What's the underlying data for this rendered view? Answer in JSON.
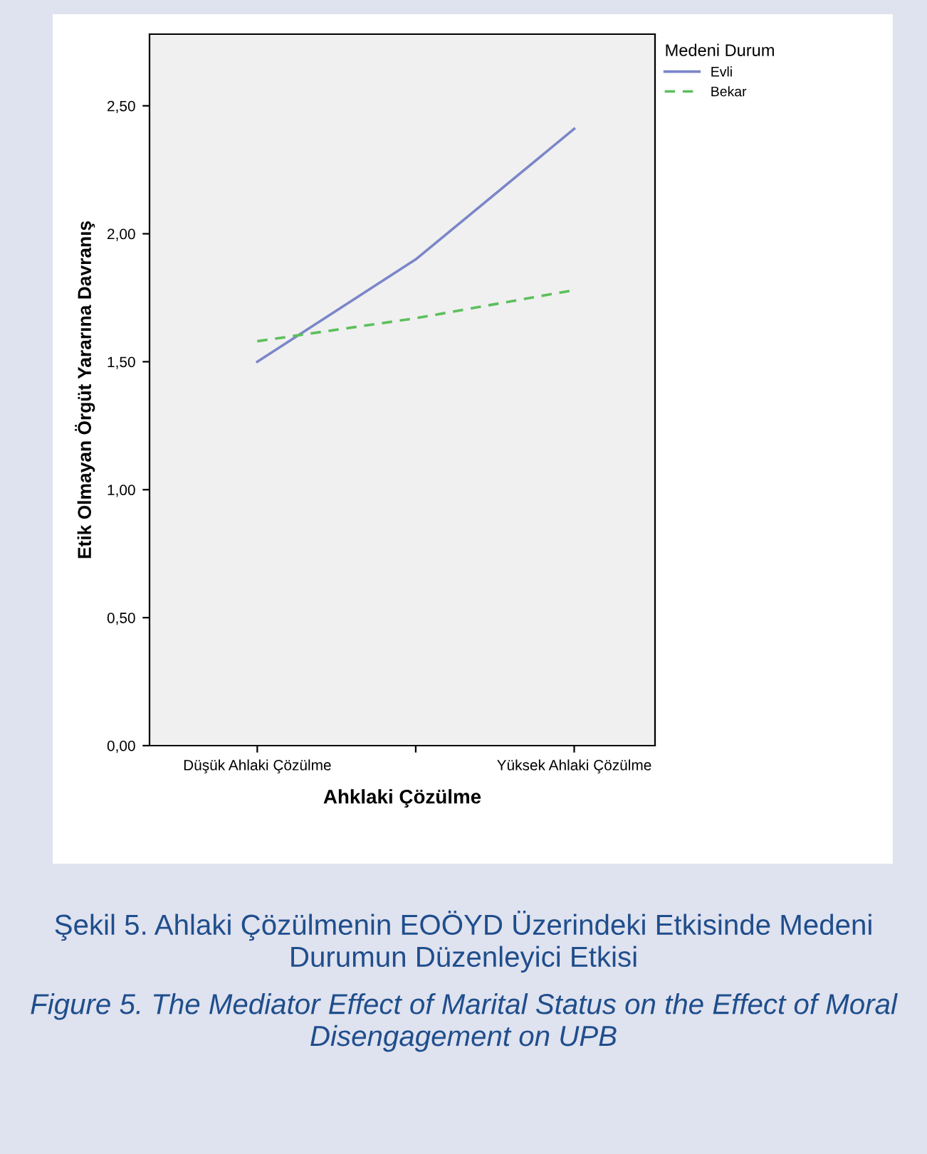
{
  "chart_data": {
    "type": "line",
    "xlabel": "Ahklaki Çözülme",
    "ylabel": "Etik Olmayan Örgüt Yararına Davranış",
    "legend_title": "Medeni Durum",
    "categories": [
      "Düşük Ahlaki Çözülme",
      null,
      "Yüksek Ahlaki Çözülme"
    ],
    "series": [
      {
        "name": "Evli",
        "color": "#7b86c9",
        "values": [
          1.5,
          1.9,
          2.41
        ],
        "line_style": "solid"
      },
      {
        "name": "Bekar",
        "color": "#5cbf5c",
        "values": [
          1.58,
          1.67,
          1.78
        ],
        "line_style": "dashed"
      }
    ],
    "ylim": [
      0,
      2.78
    ],
    "yticks": [
      {
        "value": 0,
        "label": "0,00"
      },
      {
        "value": 0.5,
        "label": "0,50"
      },
      {
        "value": 1,
        "label": "1,00"
      },
      {
        "value": 1.5,
        "label": "1,50"
      },
      {
        "value": 2,
        "label": "2,00"
      },
      {
        "value": 2.5,
        "label": "2,50"
      }
    ],
    "legend": "top right",
    "grid": false,
    "marker": "none",
    "annotations": [
      "Şekil 5. Ahlaki Çözülmenin EOÖYD Üzerindeki Etkisinde Medeni Durumun Düzenleyici Etkisi",
      "Figure 5. The Mediator Effect of Marital Status on the Effect of Moral Disengagement on UPB"
    ]
  }
}
